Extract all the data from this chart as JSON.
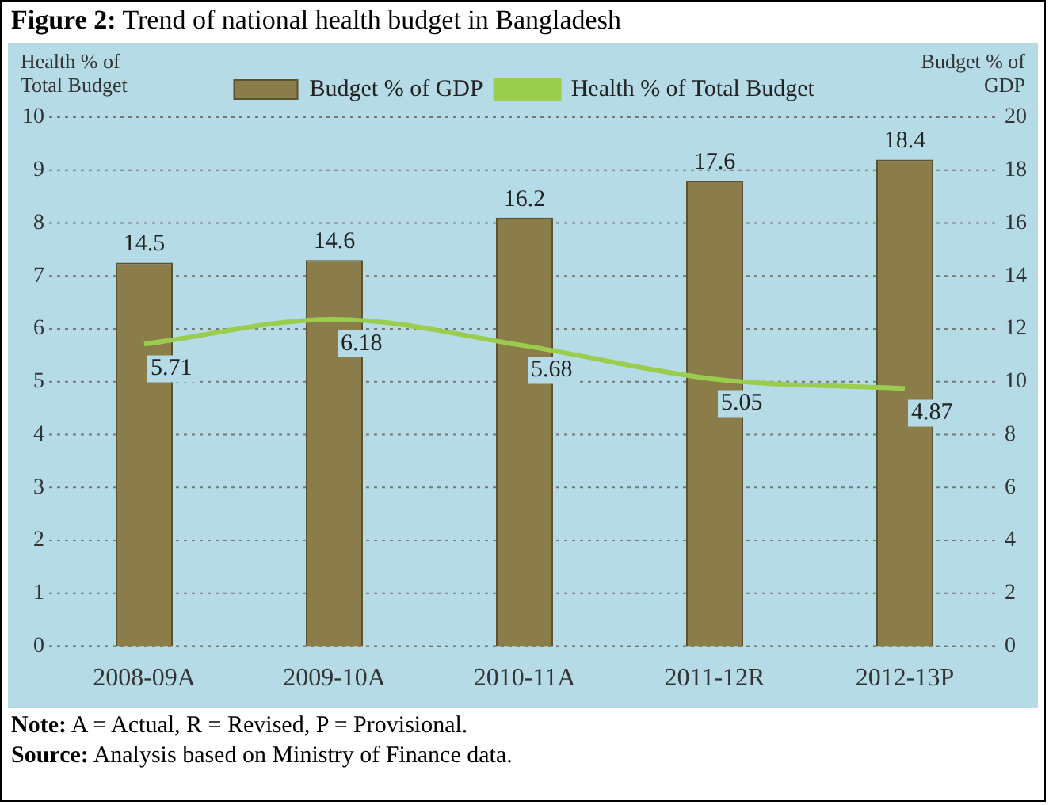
{
  "chart_data": {
    "type": "bar",
    "title": "Figure 2: Trend of national health budget in Bangladesh",
    "ylabel": "Health % of Total Budget",
    "y2label": "Budget % of GDP",
    "categories": [
      "2008-09A",
      "2009-10A",
      "2010-11A",
      "2011-12R",
      "2012-13P"
    ],
    "series": [
      {
        "name": "Budget % of GDP",
        "axis": "y2",
        "color": "#8b7d4a",
        "values": [
          14.5,
          14.6,
          16.2,
          17.6,
          18.4
        ]
      },
      {
        "name": "Health % of Total Budget",
        "type": "line",
        "axis": "y",
        "color": "#9acd4e",
        "values": [
          5.71,
          6.18,
          5.68,
          5.05,
          4.87
        ]
      }
    ],
    "ylim": [
      0,
      10
    ],
    "yticks": [
      0,
      1,
      2,
      3,
      4,
      5,
      6,
      7,
      8,
      9,
      10
    ],
    "y2lim": [
      0,
      20
    ],
    "y2ticks": [
      0,
      2,
      4,
      6,
      8,
      10,
      12,
      14,
      16,
      18,
      20
    ],
    "grid": "y",
    "legend": "top",
    "data_labels": true,
    "marker": "none",
    "line_style": "solid",
    "annotations": [
      "Note: A = Actual, R = Revised, P = Provisional.",
      "Source: Analysis based on Ministry of Finance data."
    ]
  }
}
